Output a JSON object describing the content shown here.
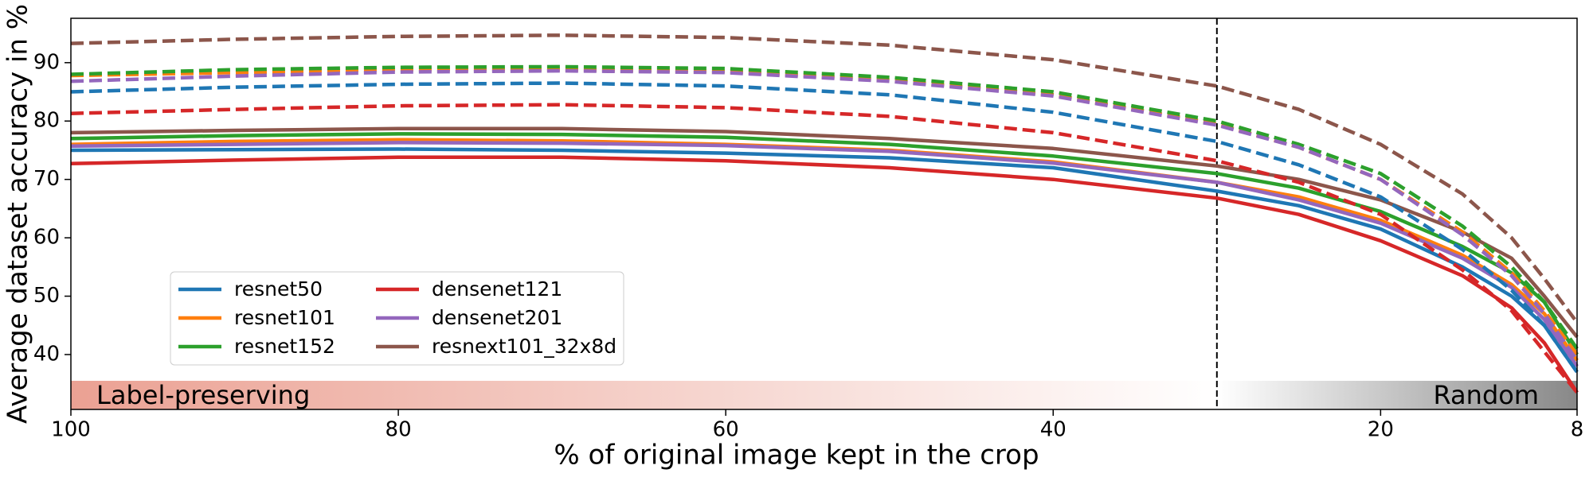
{
  "chart_data": {
    "type": "line",
    "xlabel": "% of original image kept in the crop",
    "ylabel": "Average dataset accuracy in %",
    "x": [
      100,
      90,
      80,
      70,
      60,
      50,
      40,
      30,
      25,
      20,
      15,
      12,
      10,
      8
    ],
    "xlim": [
      100,
      8
    ],
    "xticks": [
      100,
      80,
      60,
      40,
      20,
      8
    ],
    "ylim": [
      30.6,
      97.6
    ],
    "yticks": [
      40,
      50,
      60,
      70,
      80,
      90
    ],
    "vline_x": 30,
    "band_ylim": [
      30.6,
      35.5
    ],
    "regions": [
      {
        "label": "Label-preserving",
        "xlim": [
          100,
          30
        ],
        "colors": [
          "#eba193",
          "#ffffff"
        ]
      },
      {
        "label": "Random",
        "xlim": [
          30,
          8
        ],
        "colors": [
          "#ffffff",
          "#888888"
        ]
      }
    ],
    "series": [
      {
        "name": "resnet50",
        "color": "#1f77b4",
        "values": [
          75,
          75.1,
          75.2,
          75,
          74.5,
          73.7,
          72,
          68,
          65.5,
          61.5,
          55,
          50,
          45,
          37
        ],
        "dashed_values": [
          85,
          85.8,
          86.3,
          86.5,
          86,
          84.5,
          81.5,
          76.5,
          72.5,
          67,
          58,
          51,
          45,
          37
        ]
      },
      {
        "name": "resnet101",
        "color": "#ff7f0e",
        "values": [
          76,
          76.5,
          76.8,
          76.6,
          76,
          75,
          73,
          69.5,
          67,
          63,
          57,
          52,
          47,
          39
        ],
        "dashed_values": [
          87.8,
          88.3,
          88.8,
          88.8,
          88.5,
          87,
          84.5,
          79.5,
          75.5,
          70,
          61,
          54,
          47.5,
          40
        ]
      },
      {
        "name": "resnet152",
        "color": "#2ca02c",
        "values": [
          77,
          77.5,
          77.8,
          77.7,
          77.2,
          76,
          74,
          71,
          68.5,
          64.5,
          58.5,
          54,
          49,
          40
        ],
        "dashed_values": [
          88,
          88.8,
          89.2,
          89.3,
          89,
          87.5,
          85,
          80,
          76,
          71,
          62,
          55,
          49,
          41
        ]
      },
      {
        "name": "densenet121",
        "color": "#d62728",
        "values": [
          72.7,
          73.3,
          73.8,
          73.8,
          73.2,
          72,
          70,
          66.8,
          64,
          59.5,
          53.5,
          48,
          42,
          33.5
        ],
        "dashed_values": [
          81.3,
          82,
          82.6,
          82.8,
          82.3,
          80.8,
          78,
          73.2,
          69.5,
          64,
          54.5,
          47.5,
          40.5,
          33.5
        ]
      },
      {
        "name": "densenet201",
        "color": "#9467bd",
        "values": [
          75.7,
          76,
          76.3,
          76.2,
          75.8,
          74.8,
          72.8,
          69.5,
          66.5,
          62.5,
          56.5,
          51.5,
          46,
          38
        ],
        "dashed_values": [
          86.8,
          87.7,
          88.4,
          88.6,
          88.3,
          86.8,
          84.3,
          79.3,
          75.5,
          70,
          60.5,
          53.5,
          47,
          39
        ]
      },
      {
        "name": "resnext101_32x8d",
        "color": "#8c564b",
        "values": [
          78,
          78.4,
          78.7,
          78.7,
          78.2,
          77,
          75.3,
          72.3,
          70,
          66.5,
          61,
          56.5,
          50,
          43
        ],
        "dashed_values": [
          93.3,
          94,
          94.5,
          94.7,
          94.3,
          93,
          90.5,
          86,
          82,
          76,
          67.5,
          60,
          53,
          45.5
        ]
      }
    ]
  }
}
